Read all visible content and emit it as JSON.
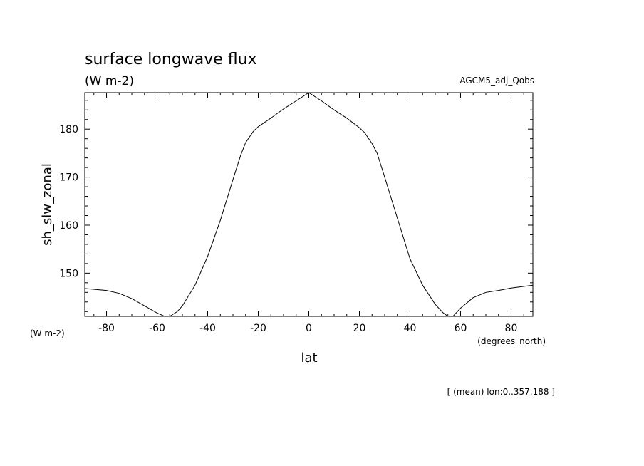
{
  "chart_data": {
    "type": "line",
    "title": "surface longwave flux",
    "units": "(W m-2)",
    "dataset": "AGCM5_adj_Qobs",
    "ylabel": "sh_slw_zonal",
    "yunits": "(W m-2)",
    "xlabel": "lat",
    "xunits": "(degrees_north)",
    "footnote": "[ (mean) lon:0..357.188 ]",
    "xlim": [
      -88.6,
      88.6
    ],
    "ylim": [
      141,
      187.6
    ],
    "xticks": [
      -80,
      -60,
      -40,
      -20,
      0,
      20,
      40,
      60,
      80
    ],
    "xtick_labels": [
      "-80",
      "-60",
      "-40",
      "-20",
      "0",
      "20",
      "40",
      "60",
      "80"
    ],
    "yticks": [
      150,
      160,
      170,
      180
    ],
    "ytick_labels": [
      "150",
      "160",
      "170",
      "180"
    ],
    "grid": false,
    "series": [
      {
        "x": [
          -88.6,
          -80,
          -75,
          -70,
          -65,
          -60,
          -57,
          -55,
          -52,
          -50,
          -45,
          -40,
          -35,
          -30,
          -27,
          -25,
          -22,
          -20,
          -15,
          -10,
          -5,
          0,
          5,
          10,
          15,
          20,
          22,
          25,
          27,
          30,
          35,
          40,
          45,
          50,
          53,
          55,
          57,
          60,
          65,
          70,
          75,
          80,
          88.6
        ],
        "y": [
          146.8,
          146.4,
          145.8,
          144.7,
          143.2,
          141.7,
          141.0,
          141.0,
          142.0,
          143.2,
          147.5,
          153.5,
          161.0,
          169.5,
          174.5,
          177.2,
          179.5,
          180.5,
          182.3,
          184.2,
          185.9,
          187.6,
          185.9,
          184.0,
          182.3,
          180.3,
          179.3,
          177.0,
          175.0,
          170.0,
          161.5,
          153.0,
          147.5,
          143.5,
          141.8,
          141.0,
          141.0,
          142.7,
          144.9,
          146.0,
          146.4,
          146.9,
          147.5
        ]
      }
    ]
  }
}
